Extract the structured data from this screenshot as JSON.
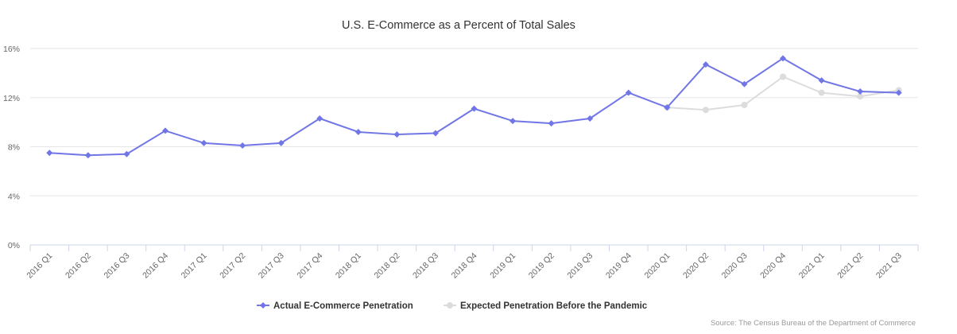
{
  "chart_data": {
    "type": "line",
    "title": "U.S. E-Commerce as a Percent of Total Sales",
    "credit": "Source: The Census Bureau of the Department of Commerce",
    "xlabel": "",
    "ylabel": "",
    "ylim": [
      0,
      16
    ],
    "yticks": [
      "0%",
      "4%",
      "8%",
      "12%",
      "16%"
    ],
    "ytick_values": [
      0,
      4,
      8,
      12,
      16
    ],
    "grid": true,
    "legend_position": "bottom-center",
    "categories": [
      "2016 Q1",
      "2016 Q2",
      "2016 Q3",
      "2016 Q4",
      "2017 Q1",
      "2017 Q2",
      "2017 Q3",
      "2017 Q4",
      "2018 Q1",
      "2018 Q2",
      "2018 Q3",
      "2018 Q4",
      "2019 Q1",
      "2019 Q2",
      "2019 Q3",
      "2019 Q4",
      "2020 Q1",
      "2020 Q2",
      "2020 Q3",
      "2020 Q4",
      "2021 Q1",
      "2021 Q2",
      "2021 Q3"
    ],
    "series": [
      {
        "name": "Actual E-Commerce Penetration",
        "color": "#7176e6",
        "marker": "diamond",
        "values": [
          7.5,
          7.3,
          7.4,
          9.3,
          8.3,
          8.1,
          8.3,
          10.3,
          9.2,
          9.0,
          9.1,
          11.1,
          10.1,
          9.9,
          10.3,
          12.4,
          11.2,
          14.7,
          13.1,
          15.2,
          13.4,
          12.5,
          12.4
        ]
      },
      {
        "name": "Expected Penetration Before the Pandemic",
        "color": "#dcdcdc",
        "marker": "circle",
        "values": [
          null,
          null,
          null,
          null,
          null,
          null,
          null,
          null,
          null,
          null,
          null,
          null,
          null,
          null,
          null,
          null,
          11.2,
          11.0,
          11.4,
          13.7,
          12.4,
          12.1,
          12.6
        ]
      }
    ]
  }
}
